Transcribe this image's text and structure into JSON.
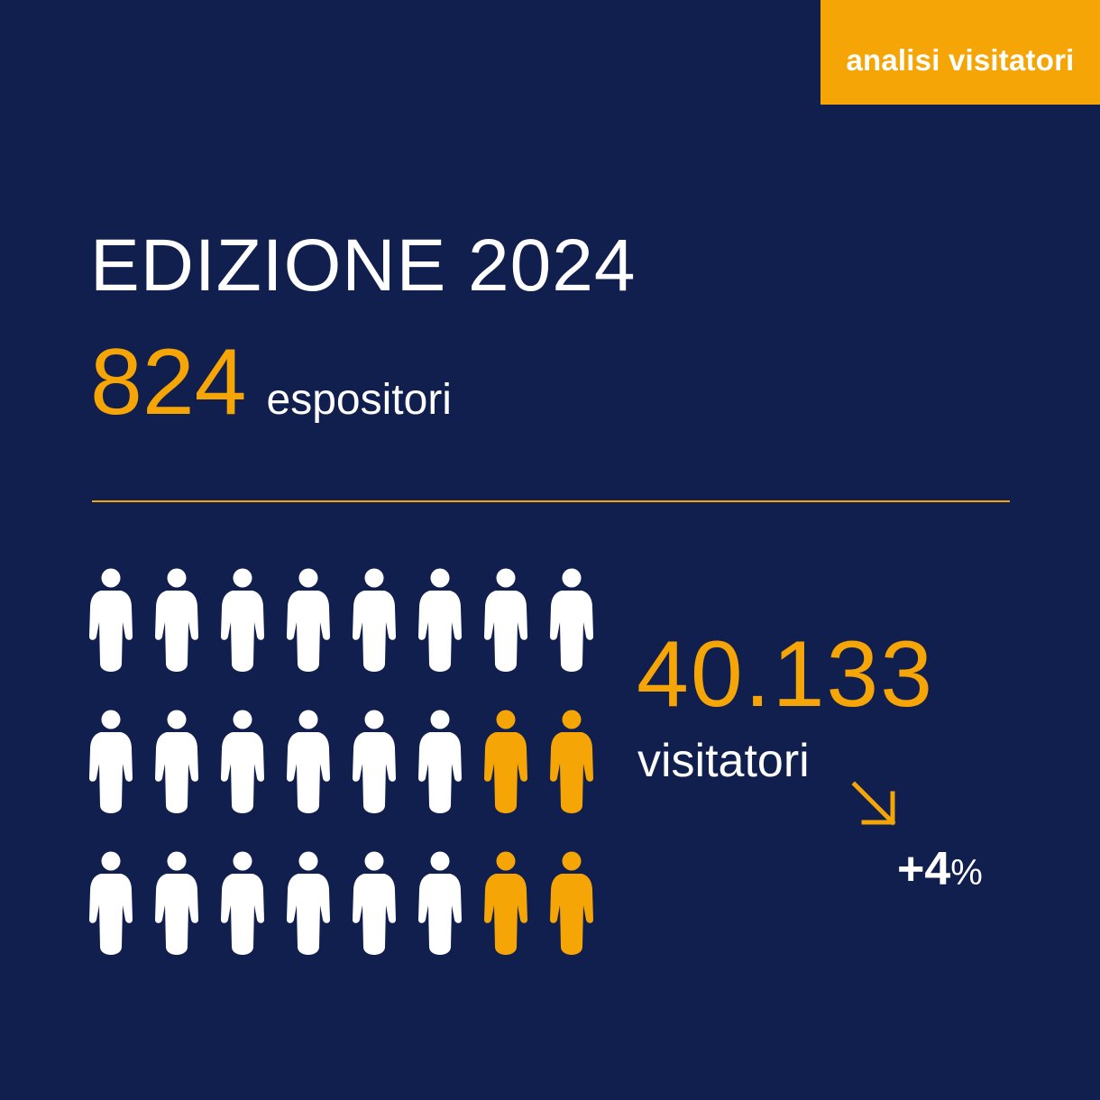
{
  "tag": {
    "label": "analisi visitatori"
  },
  "headline": {
    "title": "EDIZIONE 2024",
    "exhibitors_value": "824",
    "exhibitors_label": "espositori"
  },
  "visitors": {
    "value": "40.133",
    "label": "visitatori",
    "trend_icon": "arrow-down-right-icon",
    "change": "+4",
    "change_unit": "%"
  },
  "pictogram": {
    "icon": "person-icon",
    "rows": 3,
    "cols": 8,
    "highlighted": [
      [
        false,
        false,
        false,
        false,
        false,
        false,
        false,
        false
      ],
      [
        false,
        false,
        false,
        false,
        false,
        false,
        true,
        true
      ],
      [
        false,
        false,
        false,
        false,
        false,
        false,
        true,
        true
      ]
    ]
  },
  "colors": {
    "background": "#111f4e",
    "accent": "#f5a506",
    "text": "#ffffff"
  }
}
